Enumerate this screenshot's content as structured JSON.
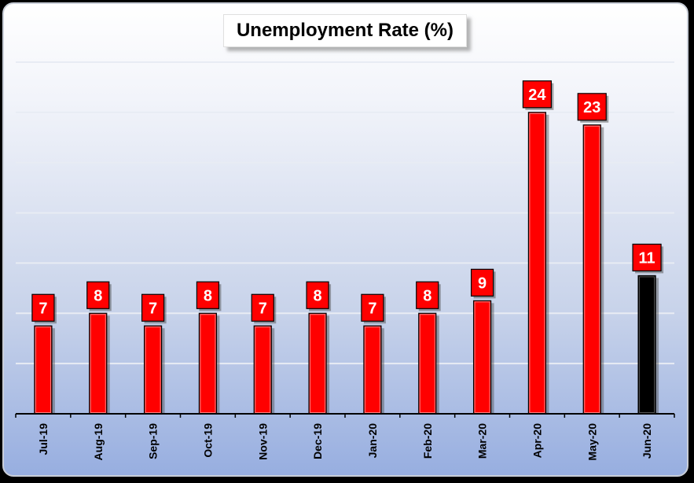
{
  "chart_data": {
    "type": "bar",
    "title": "Unemployment Rate (%)",
    "categories": [
      "Jul-19",
      "Aug-19",
      "Sep-19",
      "Oct-19",
      "Nov-19",
      "Dec-19",
      "Jan-20",
      "Feb-20",
      "Mar-20",
      "Apr-20",
      "May-20",
      "Jun-20"
    ],
    "values": [
      7,
      8,
      7,
      8,
      7,
      8,
      7,
      8,
      9,
      24,
      23,
      11
    ],
    "labels": [
      "7",
      "8",
      "7",
      "8",
      "7",
      "8",
      "7",
      "8",
      "9",
      "24",
      "23",
      "11"
    ],
    "xlabel": "",
    "ylabel": "",
    "ylim": [
      0,
      28
    ],
    "grid": true,
    "legend": "none",
    "colors": {
      "bar": "#ff0000",
      "highlight_bar": "#000000",
      "label_box": "#ff0000",
      "label_text": "#ffffff",
      "gridline": "#e8ecf4"
    },
    "highlight_category": "Jun-20"
  }
}
